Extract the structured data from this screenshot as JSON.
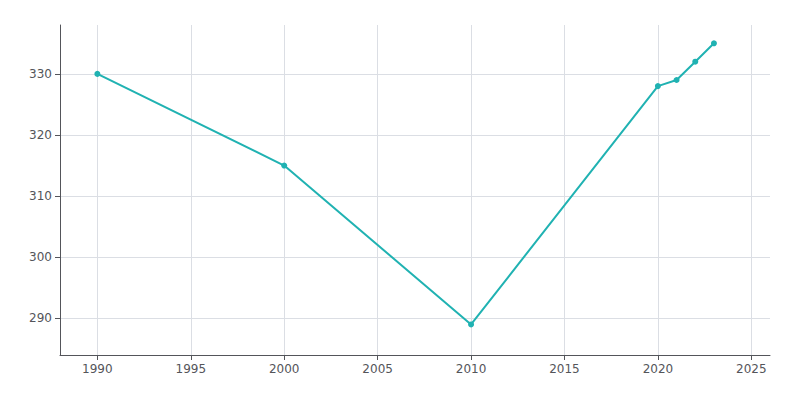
{
  "chart_data": {
    "type": "line",
    "x": [
      1990,
      2000,
      2010,
      2020,
      2021,
      2022,
      2023
    ],
    "values": [
      330,
      315,
      289,
      328,
      329,
      332,
      335
    ],
    "color": "#20b2b2",
    "marker": "circle",
    "xlim": [
      1988,
      2026
    ],
    "ylim": [
      284,
      338
    ],
    "xticks": [
      1990,
      1995,
      2000,
      2005,
      2010,
      2015,
      2020,
      2025
    ],
    "yticks": [
      290,
      300,
      310,
      320,
      330
    ],
    "grid": true
  }
}
